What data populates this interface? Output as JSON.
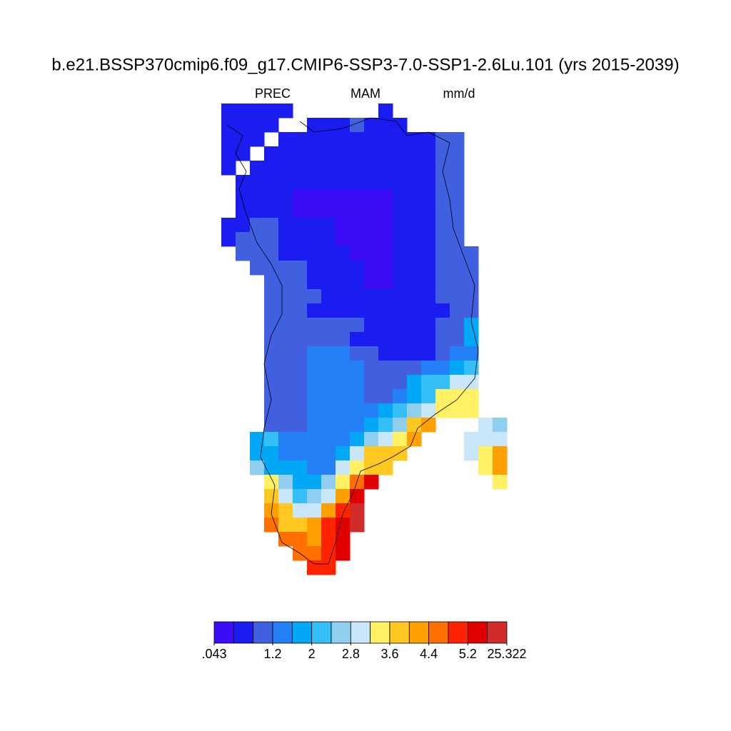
{
  "chart_data": {
    "type": "gridmap",
    "title": "b.e21.BSSP370cmip6.f09_g17.CMIP6-SSP3-7.0-SSP1-2.6Lu.101 (yrs 2015-2039)",
    "left_string": "PREC",
    "center_string": "MAM",
    "right_string": "mm/d",
    "colorbar": {
      "levels": [
        0.043,
        0.4,
        0.8,
        1.2,
        1.6,
        2,
        2.4,
        2.8,
        3.2,
        3.6,
        4,
        4.4,
        4.8,
        5.2,
        5.6,
        25.322
      ],
      "colors": [
        "#3c0cf6",
        "#1a1cf0",
        "#4060e0",
        "#2480f6",
        "#00a8f6",
        "#34c0f6",
        "#90cef0",
        "#c8e6f8",
        "#fff064",
        "#ffc820",
        "#ffa000",
        "#ff7000",
        "#ff2400",
        "#e00000",
        "#d02c2c"
      ],
      "ticks": [
        {
          "value": 0.043,
          "label": ".043"
        },
        1.2,
        2,
        2.8,
        3.6,
        4.4,
        5.2,
        25.322
      ]
    },
    "cells": [
      [
        0.6,
        0.6,
        0.6,
        0.6,
        0.6,
        null,
        null,
        null,
        null,
        null,
        null,
        0.6,
        null,
        null,
        null,
        null,
        null,
        null,
        null,
        null
      ],
      [
        0.6,
        0.6,
        0.6,
        0.6,
        null,
        null,
        0.6,
        0.6,
        0.6,
        1,
        0.6,
        0.6,
        0.6,
        null,
        null,
        null,
        null,
        null,
        null,
        null
      ],
      [
        0.6,
        0.6,
        0.6,
        null,
        0.6,
        0.6,
        0.6,
        0.6,
        0.6,
        0.6,
        0.6,
        0.6,
        0.6,
        0.6,
        0.6,
        1,
        1,
        null,
        null,
        null
      ],
      [
        0.6,
        0.6,
        null,
        0.6,
        0.6,
        0.6,
        0.6,
        0.6,
        0.6,
        0.6,
        0.6,
        0.6,
        0.6,
        0.6,
        0.6,
        1,
        1,
        null,
        null,
        null
      ],
      [
        0.6,
        null,
        0.6,
        0.6,
        0.6,
        0.6,
        0.6,
        0.6,
        0.6,
        0.6,
        0.6,
        0.6,
        0.6,
        0.6,
        0.6,
        1,
        1,
        null,
        null,
        null
      ],
      [
        null,
        0.6,
        0.6,
        0.6,
        0.6,
        0.6,
        0.6,
        0.6,
        0.6,
        0.6,
        0.6,
        0.6,
        0.6,
        0.6,
        0.6,
        1,
        1,
        null,
        null,
        null
      ],
      [
        null,
        0.6,
        0.6,
        0.6,
        0.6,
        0.3,
        0.3,
        0.3,
        0.3,
        0.3,
        0.3,
        0.3,
        0.6,
        0.6,
        0.6,
        1,
        1,
        null,
        null,
        null
      ],
      [
        null,
        0.6,
        0.6,
        0.6,
        0.6,
        0.3,
        0.3,
        0.3,
        0.3,
        0.3,
        0.3,
        0.3,
        0.6,
        0.6,
        0.6,
        1,
        1,
        null,
        null,
        null
      ],
      [
        0.6,
        0.6,
        1,
        1,
        0.6,
        0.6,
        0.6,
        0.6,
        0.3,
        0.3,
        0.3,
        0.3,
        0.6,
        0.6,
        0.6,
        1,
        1,
        null,
        null,
        null
      ],
      [
        0.6,
        1,
        1,
        1,
        0.6,
        0.6,
        0.6,
        0.6,
        0.3,
        0.3,
        0.3,
        0.3,
        0.6,
        0.6,
        0.6,
        1,
        1,
        null,
        null,
        null
      ],
      [
        null,
        1,
        1,
        1,
        0.6,
        0.6,
        0.6,
        0.6,
        0.6,
        0.3,
        0.3,
        0.3,
        0.6,
        0.6,
        0.6,
        1,
        1,
        1,
        null,
        null
      ],
      [
        null,
        null,
        1,
        1,
        1,
        1,
        0.6,
        0.6,
        0.6,
        0.6,
        0.3,
        0.3,
        0.6,
        0.6,
        0.6,
        1,
        1,
        1,
        null,
        null
      ],
      [
        null,
        null,
        null,
        1,
        1,
        1,
        0.6,
        0.6,
        0.6,
        0.6,
        0.3,
        0.3,
        0.6,
        0.6,
        0.6,
        1,
        1,
        1,
        null,
        null
      ],
      [
        null,
        null,
        null,
        1,
        1,
        1,
        1,
        0.6,
        0.6,
        0.6,
        0.6,
        0.6,
        0.6,
        0.6,
        0.6,
        1,
        1,
        1,
        null,
        null
      ],
      [
        null,
        null,
        null,
        1,
        1,
        1,
        0.6,
        0.6,
        0.6,
        0.6,
        0.6,
        0.6,
        0.6,
        0.6,
        0.6,
        0.6,
        1,
        1,
        null,
        null
      ],
      [
        null,
        null,
        null,
        1,
        1,
        1,
        1,
        1,
        1,
        1,
        0.6,
        0.6,
        0.6,
        0.6,
        0.6,
        1,
        1,
        1.8,
        null,
        null
      ],
      [
        null,
        null,
        null,
        1,
        1,
        1,
        1,
        1,
        1,
        0.6,
        0.6,
        0.6,
        0.6,
        0.6,
        0.6,
        1,
        1,
        1.8,
        null,
        null
      ],
      [
        null,
        null,
        null,
        1,
        1,
        1,
        1.4,
        1.4,
        1.4,
        1,
        1,
        0.6,
        0.6,
        0.6,
        0.6,
        1,
        1.4,
        1.4,
        null,
        null
      ],
      [
        null,
        null,
        null,
        1,
        1,
        1,
        1.4,
        1.4,
        1.4,
        1.4,
        1,
        1,
        1,
        1,
        1.4,
        1.4,
        1.8,
        2.2,
        null,
        null
      ],
      [
        null,
        null,
        null,
        1,
        1,
        1,
        1.4,
        1.4,
        1.4,
        1.4,
        1,
        1,
        1,
        1.8,
        2.2,
        2.2,
        3,
        3,
        null,
        null
      ],
      [
        null,
        null,
        null,
        1,
        1,
        1,
        1.4,
        1.4,
        1.4,
        1.4,
        1,
        1,
        1.4,
        1.8,
        2.2,
        3.4,
        3.4,
        3.4,
        null,
        null
      ],
      [
        null,
        null,
        null,
        1,
        1,
        1,
        1.4,
        1.4,
        1.4,
        1.4,
        1.4,
        1.8,
        2.2,
        2.6,
        3,
        3.4,
        3.4,
        3.4,
        null,
        null
      ],
      [
        null,
        null,
        null,
        1,
        1,
        1,
        1.4,
        1.4,
        1.4,
        1.4,
        1.8,
        2.2,
        2.6,
        3.8,
        4.2,
        null,
        null,
        null,
        3,
        2.6
      ],
      [
        null,
        null,
        1.8,
        2.2,
        1.4,
        1.4,
        1.4,
        1.4,
        1.4,
        1.8,
        2.6,
        3,
        3.4,
        4.2,
        null,
        null,
        null,
        3,
        3,
        3
      ],
      [
        null,
        null,
        1.8,
        1.8,
        1.4,
        1.4,
        1.4,
        1.4,
        1.8,
        3,
        3.8,
        3.8,
        3.8,
        null,
        null,
        null,
        null,
        3,
        3.4,
        4.2
      ],
      [
        null,
        null,
        2.6,
        1.8,
        1.8,
        1.8,
        1.4,
        1.4,
        3,
        3.4,
        3.8,
        3.8,
        null,
        null,
        null,
        null,
        null,
        null,
        3.4,
        4.2
      ],
      [
        null,
        null,
        null,
        3.4,
        2.6,
        1.8,
        1.8,
        2.6,
        3.4,
        4.6,
        5.4,
        null,
        null,
        null,
        null,
        null,
        null,
        null,
        null,
        3.4
      ],
      [
        null,
        null,
        null,
        3.8,
        3,
        2.2,
        2.6,
        3,
        4.2,
        5.4,
        null,
        null,
        null,
        null,
        null,
        null,
        null,
        null,
        null,
        null
      ],
      [
        null,
        null,
        null,
        4.2,
        3.8,
        3,
        3,
        4.2,
        5,
        6,
        null,
        null,
        null,
        null,
        null,
        null,
        null,
        null,
        null,
        null
      ],
      [
        null,
        null,
        null,
        4.6,
        3.8,
        3.8,
        4.2,
        5,
        5.4,
        6,
        null,
        null,
        null,
        null,
        null,
        null,
        null,
        null,
        null,
        null
      ],
      [
        null,
        null,
        null,
        null,
        4.6,
        4.6,
        4.2,
        5,
        5.4,
        null,
        null,
        null,
        null,
        null,
        null,
        null,
        null,
        null,
        null,
        null
      ],
      [
        null,
        null,
        null,
        null,
        null,
        4.6,
        4.6,
        5,
        5.4,
        null,
        null,
        null,
        null,
        null,
        null,
        null,
        null,
        null,
        null,
        null
      ],
      [
        null,
        null,
        null,
        null,
        null,
        null,
        5,
        5,
        null,
        null,
        null,
        null,
        null,
        null,
        null,
        null,
        null,
        null,
        null,
        null
      ]
    ]
  }
}
